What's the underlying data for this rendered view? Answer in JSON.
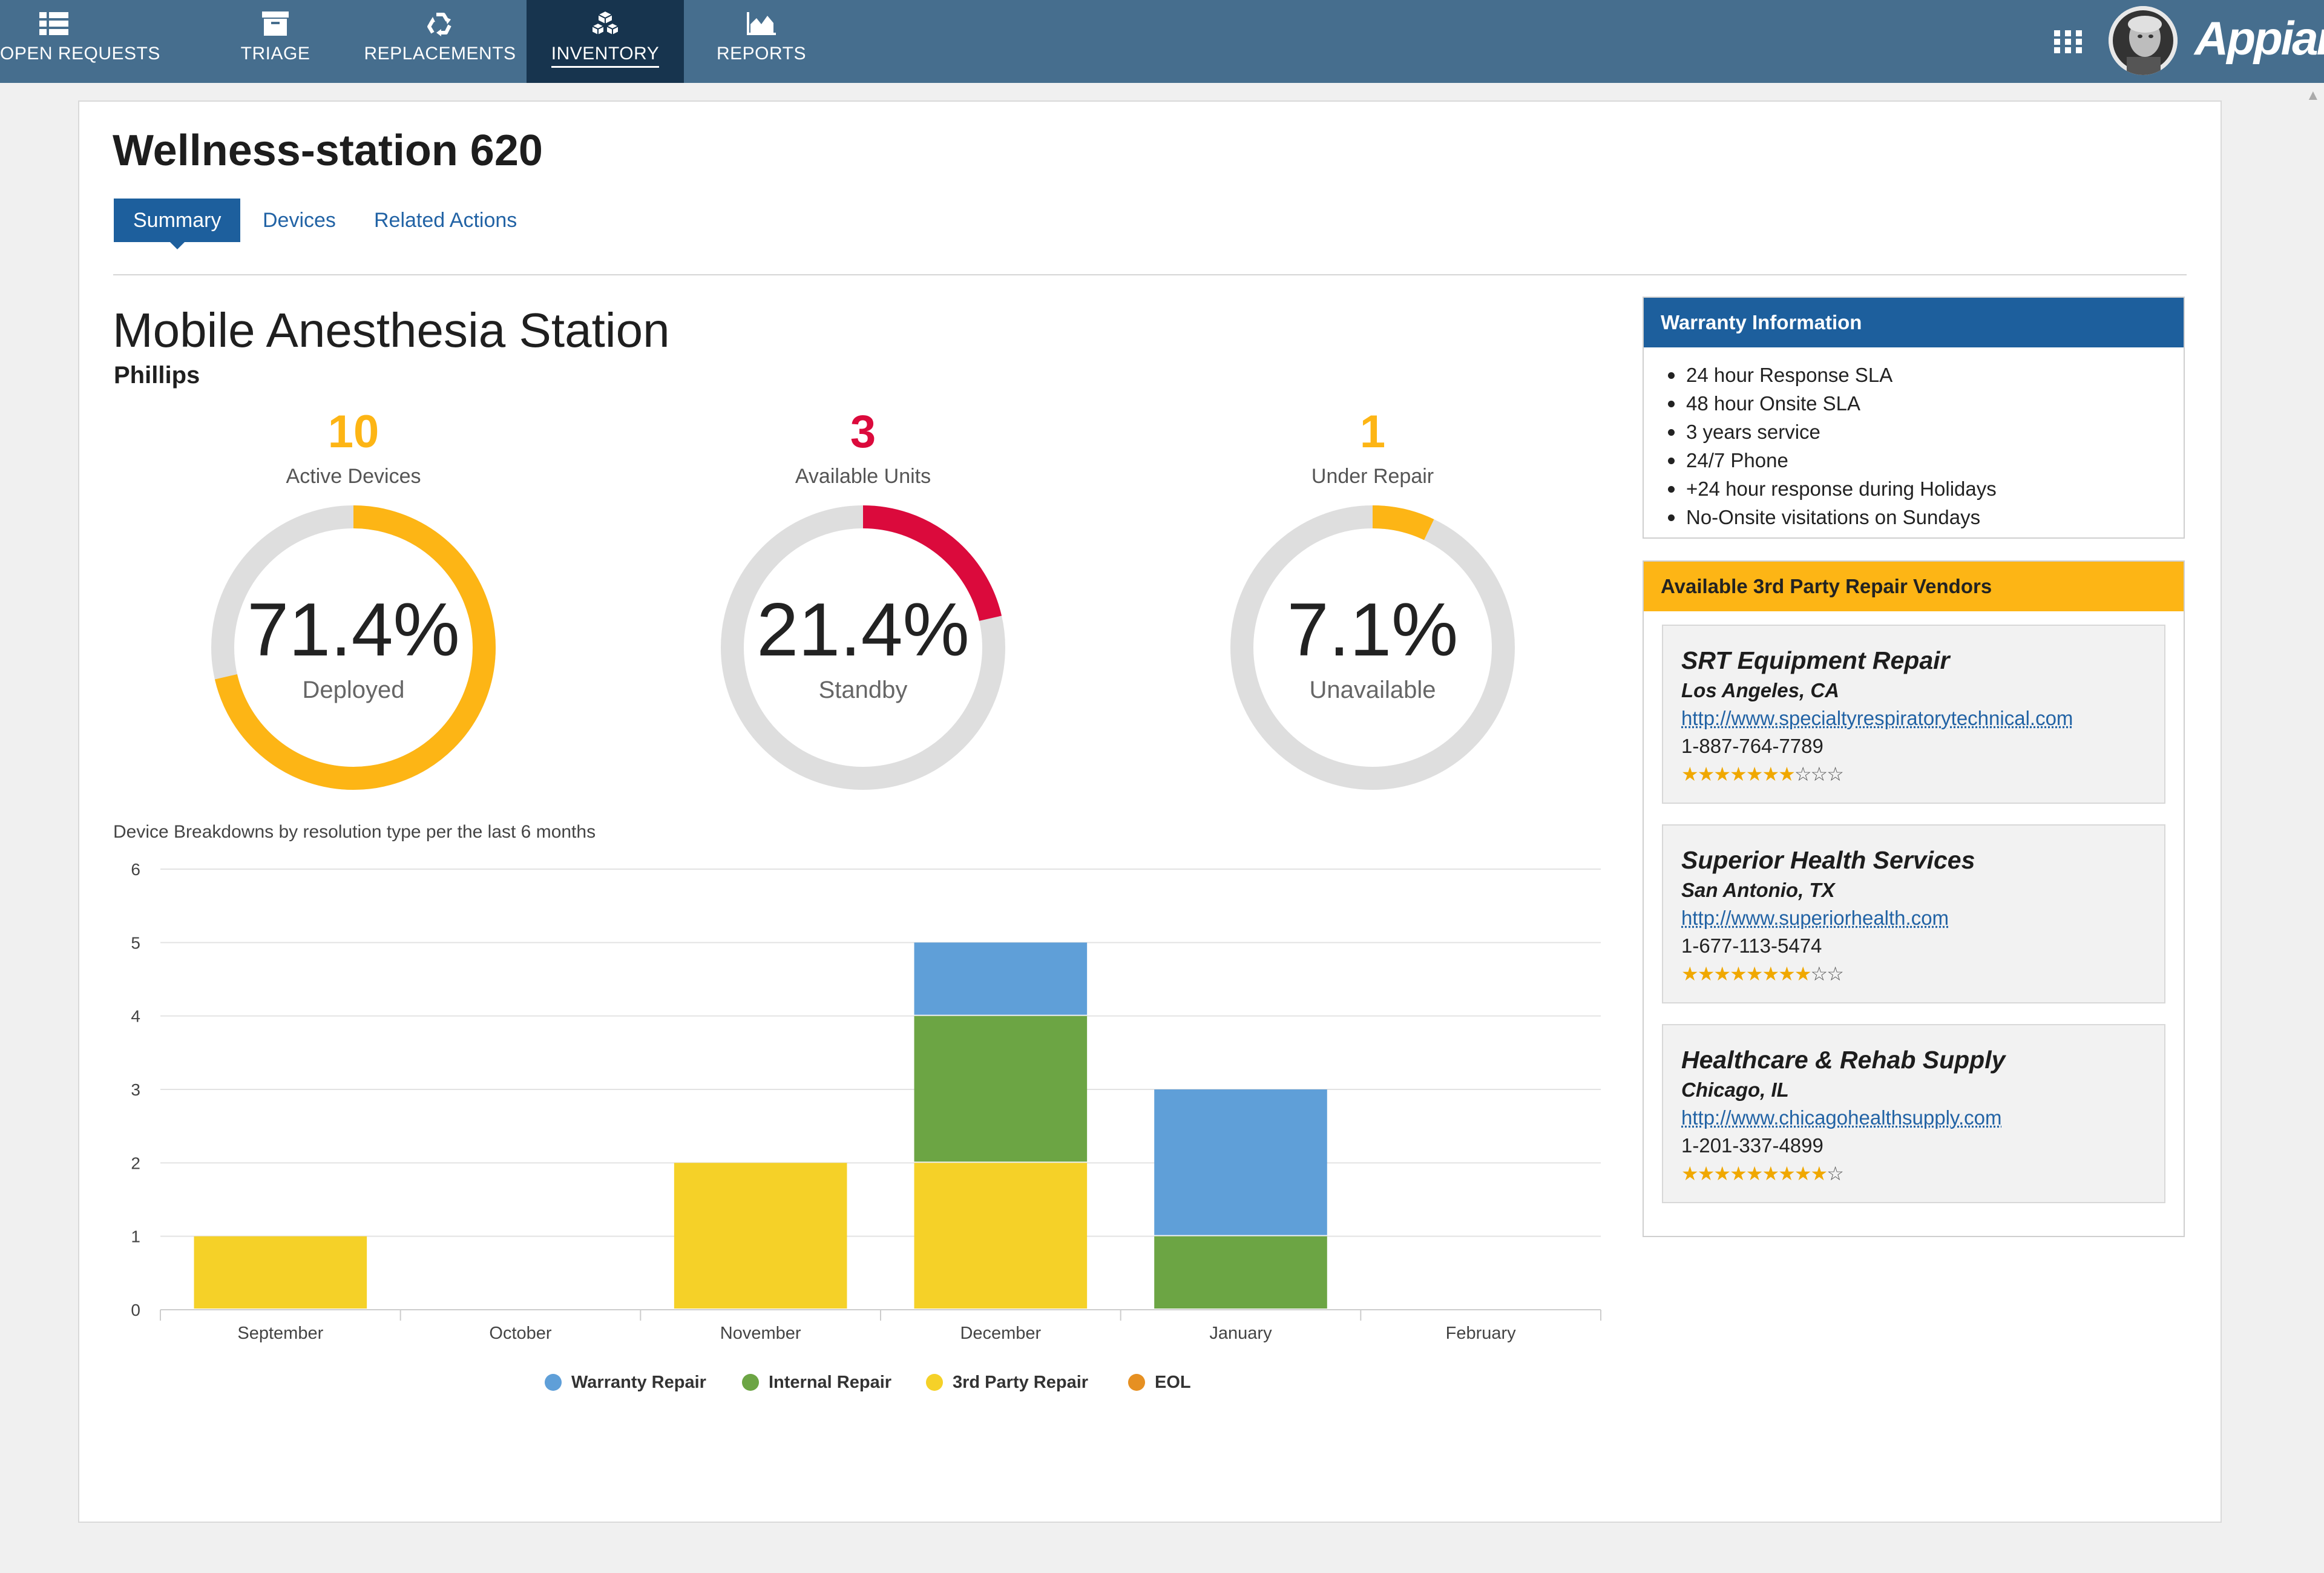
{
  "nav": {
    "items": [
      {
        "label": "OPEN REQUESTS",
        "icon": "list-icon"
      },
      {
        "label": "TRIAGE",
        "icon": "archive-box-icon"
      },
      {
        "label": "REPLACEMENTS",
        "icon": "recycle-icon"
      },
      {
        "label": "INVENTORY",
        "icon": "cubes-icon",
        "active": true
      },
      {
        "label": "REPORTS",
        "icon": "area-chart-icon"
      }
    ],
    "apps_icon": "grid-icon",
    "brand": "Appian"
  },
  "page": {
    "title": "Wellness-station 620",
    "tabs": [
      "Summary",
      "Devices",
      "Related Actions"
    ]
  },
  "device": {
    "name": "Mobile Anesthesia Station",
    "manufacturer": "Phillips"
  },
  "gauges": [
    {
      "count": "10",
      "label": "Active Devices",
      "percent_text": "71.4%",
      "sublabel": "Deployed",
      "fraction": 0.714,
      "color": "#fdb515"
    },
    {
      "count": "3",
      "label": "Available Units",
      "percent_text": "21.4%",
      "sublabel": "Standby",
      "fraction": 0.214,
      "color": "#db0a3c"
    },
    {
      "count": "1",
      "label": "Under Repair",
      "percent_text": "7.1%",
      "sublabel": "Unavailable",
      "fraction": 0.071,
      "color": "#fdb515"
    }
  ],
  "chart_caption": "Device Breakdowns by resolution type per the last 6 months",
  "chart_data": {
    "type": "bar",
    "stacked": true,
    "categories": [
      "September",
      "October",
      "November",
      "December",
      "January",
      "February"
    ],
    "series": [
      {
        "name": "3rd Party Repair",
        "color": "#f5d128",
        "values": [
          1,
          0,
          2,
          2,
          0,
          0
        ]
      },
      {
        "name": "Internal Repair",
        "color": "#6ca544",
        "values": [
          0,
          0,
          0,
          2,
          1,
          0
        ]
      },
      {
        "name": "Warranty Repair",
        "color": "#5f9fd8",
        "values": [
          0,
          0,
          0,
          1,
          2,
          0
        ]
      },
      {
        "name": "EOL",
        "color": "#e69022",
        "values": [
          0,
          0,
          0,
          0,
          0,
          0
        ]
      }
    ],
    "legend_order": [
      "Warranty Repair",
      "Internal Repair",
      "3rd Party Repair",
      "EOL"
    ],
    "ylim": [
      0,
      6
    ],
    "yticks": [
      0,
      1,
      2,
      3,
      4,
      5,
      6
    ],
    "grid": true,
    "legend_position": "bottom"
  },
  "warranty": {
    "title": "Warranty Information",
    "items": [
      "24 hour Response SLA",
      "48 hour Onsite SLA",
      "3 years service",
      "24/7 Phone",
      "+24 hour response during Holidays",
      "No-Onsite visitations on Sundays"
    ]
  },
  "vendors": {
    "title": "Available 3rd Party Repair Vendors",
    "items": [
      {
        "name": "SRT Equipment Repair",
        "location": "Los Angeles, CA",
        "url": "http://www.specialtyrespiratorytechnical.com",
        "phone": "1-887-764-7789",
        "rating": 7,
        "max_rating": 10
      },
      {
        "name": "Superior Health Services",
        "location": "San Antonio, TX",
        "url": "http://www.superiorhealth.com",
        "phone": "1-677-113-5474",
        "rating": 8,
        "max_rating": 10
      },
      {
        "name": "Healthcare & Rehab Supply",
        "location": "Chicago, IL",
        "url": "http://www.chicagohealthsupply.com",
        "phone": "1-201-337-4899",
        "rating": 9,
        "max_rating": 10
      }
    ]
  }
}
